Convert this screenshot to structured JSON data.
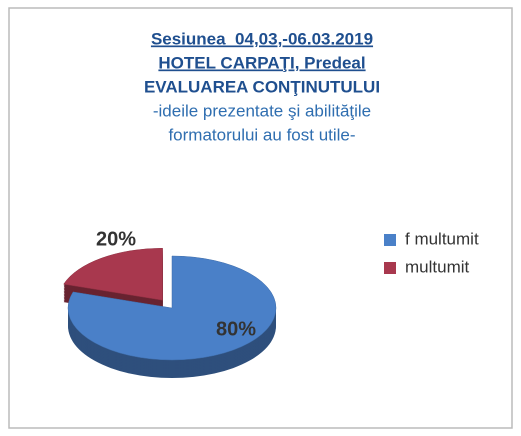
{
  "chart_data": {
    "type": "pie",
    "title": [
      "Sesiunea  04,03,-06.03.2019",
      "HOTEL CARPAŢI, Predeal",
      "EVALUAREA CONŢINUTULUI"
    ],
    "subtitle": [
      "-ideile prezentate şi abilităţile",
      "formatorului au fost utile-"
    ],
    "categories": [
      "f multumit",
      "multumit"
    ],
    "values": [
      80,
      20
    ],
    "value_labels": [
      "80%",
      "20%"
    ],
    "colors": [
      "#4a80c8",
      "#a8384e"
    ],
    "legend": "right"
  }
}
